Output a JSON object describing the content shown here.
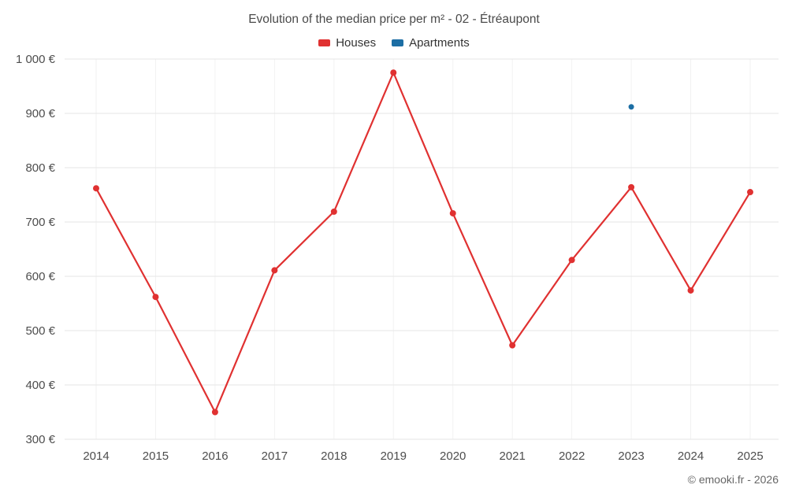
{
  "title": "Evolution of the median price per m² - 02 - Étréaupont",
  "footer": {
    "credit": "© emooki.fr - 2026"
  },
  "chart_data": {
    "type": "line",
    "title": "Evolution of the median price per m² - 02 - Étréaupont",
    "categories": [
      2014,
      2015,
      2016,
      2017,
      2018,
      2019,
      2020,
      2021,
      2022,
      2023,
      2024,
      2025
    ],
    "series": [
      {
        "name": "Houses",
        "color": "#e03131",
        "values": [
          762,
          562,
          350,
          611,
          719,
          975,
          716,
          473,
          630,
          764,
          574,
          755
        ]
      },
      {
        "name": "Apartments",
        "color": "#1c6ea4",
        "values": [
          null,
          null,
          null,
          null,
          null,
          null,
          null,
          null,
          null,
          912,
          null,
          null
        ]
      }
    ],
    "xlabel": "",
    "ylabel": "",
    "ylim": [
      300,
      1000
    ],
    "ytick_step": 100,
    "value_suffix": " €",
    "grid": true,
    "legend_position": "top",
    "colors": {
      "gridline": "#e6e6e6",
      "vertical_gridline": "#f2f2f2",
      "axis_label": "#4d4d4d"
    }
  }
}
